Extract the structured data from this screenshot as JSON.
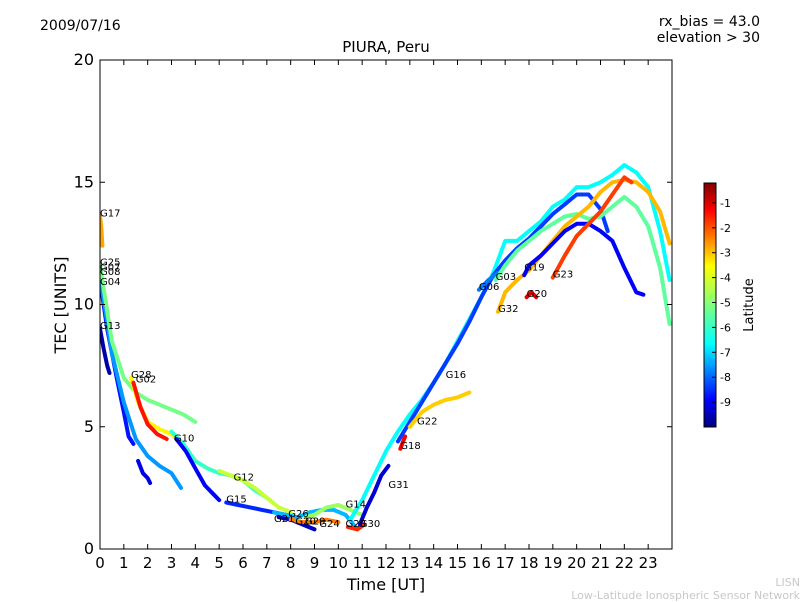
{
  "header": {
    "date": "2009/07/16",
    "rx_bias": "rx_bias = 43.0",
    "elevation": "elevation > 30"
  },
  "footer": {
    "short": "LISN",
    "long": "Low-Latitude Ionospheric Sensor Network"
  },
  "chart_data": {
    "type": "scatter",
    "title": "PIURA, Peru",
    "xlabel": "Time [UT]",
    "ylabel": "TEC [UNITS]",
    "xlim": [
      0,
      24
    ],
    "ylim": [
      0,
      20
    ],
    "xticks": [
      "0",
      "1",
      "2",
      "3",
      "4",
      "5",
      "6",
      "7",
      "8",
      "9",
      "10",
      "11",
      "12",
      "13",
      "14",
      "15",
      "16",
      "17",
      "18",
      "19",
      "20",
      "21",
      "22",
      "23"
    ],
    "yticks": [
      "0",
      "5",
      "10",
      "15",
      "20"
    ],
    "colorbar": {
      "label": "Latitude",
      "range": [
        -10,
        -0.2
      ],
      "ticks": [
        "-1",
        "-2",
        "-3",
        "-4",
        "-5",
        "-6",
        "-7",
        "-8",
        "-9"
      ],
      "colors": [
        "#00007f",
        "#0000ff",
        "#007fff",
        "#00ffff",
        "#7fff7f",
        "#ffff00",
        "#ff7f00",
        "#ff0000",
        "#7f0000"
      ]
    },
    "satellite_labels": [
      {
        "name": "G17",
        "time": 0.0,
        "tec": 13.6
      },
      {
        "name": "G25",
        "time": 0.0,
        "tec": 11.6
      },
      {
        "name": "G07",
        "time": 0.0,
        "tec": 11.4
      },
      {
        "name": "G08",
        "time": 0.0,
        "tec": 11.2
      },
      {
        "name": "G04",
        "time": 0.0,
        "tec": 10.8
      },
      {
        "name": "G13",
        "time": 0.0,
        "tec": 9.0
      },
      {
        "name": "G28",
        "time": 1.3,
        "tec": 7.0
      },
      {
        "name": "G02",
        "time": 1.5,
        "tec": 6.8
      },
      {
        "name": "G10",
        "time": 3.1,
        "tec": 4.4
      },
      {
        "name": "G12",
        "time": 5.6,
        "tec": 2.8
      },
      {
        "name": "G15",
        "time": 5.3,
        "tec": 1.9
      },
      {
        "name": "G26",
        "time": 7.9,
        "tec": 1.3
      },
      {
        "name": "G20",
        "time": 8.2,
        "tec": 1.0
      },
      {
        "name": "G29",
        "time": 8.6,
        "tec": 1.0
      },
      {
        "name": "G21",
        "time": 7.3,
        "tec": 1.1
      },
      {
        "name": "G24",
        "time": 9.2,
        "tec": 0.9
      },
      {
        "name": "G14",
        "time": 10.3,
        "tec": 1.7
      },
      {
        "name": "G23",
        "time": 10.3,
        "tec": 0.9
      },
      {
        "name": "G30",
        "time": 10.9,
        "tec": 0.9
      },
      {
        "name": "G31",
        "time": 12.1,
        "tec": 2.5
      },
      {
        "name": "G18",
        "time": 12.6,
        "tec": 4.1
      },
      {
        "name": "G22",
        "time": 13.3,
        "tec": 5.1
      },
      {
        "name": "G16",
        "time": 14.5,
        "tec": 7.0
      },
      {
        "name": "G06",
        "time": 15.9,
        "tec": 10.6
      },
      {
        "name": "G03",
        "time": 16.6,
        "tec": 11.0
      },
      {
        "name": "G19",
        "time": 17.8,
        "tec": 11.4
      },
      {
        "name": "G32",
        "time": 16.7,
        "tec": 9.7
      },
      {
        "name": "G20",
        "time": 17.9,
        "tec": 10.3
      },
      {
        "name": "G23",
        "time": 19.0,
        "tec": 11.1
      }
    ],
    "series": [
      {
        "name": "G13",
        "lat": -9.6,
        "points": [
          [
            0,
            9.0
          ],
          [
            0.15,
            8.2
          ],
          [
            0.3,
            7.5
          ],
          [
            0.4,
            7.2
          ]
        ]
      },
      {
        "name": "G04",
        "lat": -8.6,
        "points": [
          [
            0,
            11.0
          ],
          [
            0.3,
            9.0
          ],
          [
            0.7,
            7.0
          ],
          [
            1.0,
            5.6
          ],
          [
            1.2,
            4.6
          ],
          [
            1.4,
            4.3
          ]
        ]
      },
      {
        "name": "G08",
        "lat": -7.3,
        "points": [
          [
            0,
            11.2
          ],
          [
            0.5,
            8.0
          ],
          [
            1.0,
            6.0
          ],
          [
            1.5,
            4.5
          ],
          [
            2.0,
            3.8
          ],
          [
            2.5,
            3.4
          ],
          [
            3.0,
            3.1
          ],
          [
            3.4,
            2.5
          ]
        ]
      },
      {
        "name": "G07",
        "lat": -9.0,
        "points": [
          [
            1.6,
            3.6
          ],
          [
            1.8,
            3.1
          ],
          [
            2.0,
            2.9
          ],
          [
            2.1,
            2.7
          ]
        ]
      },
      {
        "name": "G25",
        "lat": -5.2,
        "points": [
          [
            0,
            11.6
          ],
          [
            0.5,
            8.5
          ],
          [
            1.0,
            7.0
          ],
          [
            1.5,
            6.4
          ],
          [
            2.0,
            6.1
          ],
          [
            2.5,
            5.9
          ],
          [
            3.0,
            5.7
          ],
          [
            3.5,
            5.5
          ],
          [
            4.0,
            5.2
          ]
        ]
      },
      {
        "name": "G28",
        "lat": -3.8,
        "points": [
          [
            1.3,
            7.0
          ],
          [
            1.6,
            6.0
          ],
          [
            2.0,
            5.2
          ],
          [
            2.5,
            4.9
          ],
          [
            3.0,
            4.7
          ],
          [
            3.2,
            4.5
          ]
        ]
      },
      {
        "name": "G02",
        "lat": -1.6,
        "points": [
          [
            1.4,
            6.8
          ],
          [
            1.7,
            5.8
          ],
          [
            2.0,
            5.1
          ],
          [
            2.4,
            4.7
          ],
          [
            2.8,
            4.5
          ]
        ]
      },
      {
        "name": "G17",
        "lat": -3.0,
        "points": [
          [
            0,
            13.6
          ],
          [
            0.05,
            13.2
          ],
          [
            0.1,
            12.4
          ]
        ]
      },
      {
        "name": "G10",
        "lat": -5.8,
        "points": [
          [
            3.0,
            4.8
          ],
          [
            3.5,
            4.3
          ],
          [
            4.0,
            3.6
          ],
          [
            4.5,
            3.3
          ],
          [
            5.0,
            3.1
          ],
          [
            5.5,
            3.0
          ],
          [
            6.0,
            2.8
          ],
          [
            6.5,
            2.4
          ],
          [
            7.0,
            2.1
          ]
        ]
      },
      {
        "name": "G10b",
        "lat": -8.8,
        "points": [
          [
            3.2,
            4.5
          ],
          [
            3.6,
            4.0
          ],
          [
            4.0,
            3.3
          ],
          [
            4.4,
            2.6
          ],
          [
            4.8,
            2.2
          ],
          [
            5.0,
            2.0
          ]
        ]
      },
      {
        "name": "G12",
        "lat": -4.4,
        "points": [
          [
            5.0,
            3.2
          ],
          [
            5.5,
            3.0
          ],
          [
            6.0,
            2.8
          ],
          [
            6.5,
            2.5
          ],
          [
            7.0,
            2.1
          ],
          [
            7.5,
            1.7
          ],
          [
            8.0,
            1.5
          ]
        ]
      },
      {
        "name": "G15",
        "lat": -8.4,
        "points": [
          [
            5.3,
            1.9
          ],
          [
            5.8,
            1.8
          ],
          [
            6.3,
            1.7
          ],
          [
            6.8,
            1.6
          ],
          [
            7.3,
            1.5
          ],
          [
            7.8,
            1.4
          ]
        ]
      },
      {
        "name": "G26",
        "lat": -9.4,
        "points": [
          [
            7.5,
            1.3
          ],
          [
            8.0,
            1.2
          ],
          [
            8.5,
            1.0
          ],
          [
            9.0,
            0.8
          ]
        ]
      },
      {
        "name": "G21",
        "lat": -7.0,
        "points": [
          [
            7.3,
            1.5
          ],
          [
            7.8,
            1.4
          ],
          [
            8.3,
            1.3
          ],
          [
            8.8,
            1.5
          ],
          [
            9.3,
            1.6
          ],
          [
            9.8,
            1.6
          ],
          [
            10.3,
            1.4
          ],
          [
            10.8,
            0.8
          ]
        ]
      },
      {
        "name": "G24",
        "lat": -2.6,
        "points": [
          [
            8.0,
            1.2
          ],
          [
            8.5,
            1.1
          ],
          [
            9.0,
            1.1
          ],
          [
            9.5,
            1.2
          ],
          [
            10.0,
            1.1
          ]
        ]
      },
      {
        "name": "G29",
        "lat": -4.8,
        "points": [
          [
            8.6,
            1.3
          ],
          [
            9.0,
            1.4
          ],
          [
            9.5,
            1.7
          ],
          [
            10.0,
            1.8
          ],
          [
            10.5,
            1.6
          ],
          [
            11.0,
            1.4
          ]
        ]
      },
      {
        "name": "G30",
        "lat": -1.8,
        "points": [
          [
            10.4,
            0.9
          ],
          [
            10.8,
            0.8
          ],
          [
            11.1,
            1.0
          ]
        ]
      },
      {
        "name": "G31",
        "lat": -9.2,
        "points": [
          [
            10.9,
            1.0
          ],
          [
            11.2,
            1.7
          ],
          [
            11.5,
            2.3
          ],
          [
            11.8,
            3.0
          ],
          [
            12.1,
            3.4
          ]
        ]
      },
      {
        "name": "G14",
        "lat": -6.3,
        "points": [
          [
            10.5,
            1.2
          ],
          [
            11.0,
            2.0
          ],
          [
            11.5,
            3.0
          ],
          [
            12.0,
            4.0
          ],
          [
            12.5,
            4.8
          ],
          [
            13.0,
            5.5
          ],
          [
            13.5,
            6.1
          ],
          [
            14.0,
            6.8
          ],
          [
            14.5,
            7.6
          ],
          [
            15.0,
            8.5
          ],
          [
            15.5,
            9.4
          ],
          [
            16.0,
            10.3
          ],
          [
            16.5,
            11.3
          ],
          [
            17.0,
            12.6
          ],
          [
            17.5,
            12.6
          ],
          [
            18.0,
            13.0
          ],
          [
            18.5,
            13.4
          ],
          [
            19.0,
            14.0
          ],
          [
            19.5,
            14.3
          ],
          [
            20.0,
            14.8
          ],
          [
            20.5,
            14.8
          ],
          [
            21.0,
            15.0
          ],
          [
            21.5,
            15.3
          ],
          [
            22.0,
            15.7
          ],
          [
            22.5,
            15.4
          ],
          [
            23.0,
            14.8
          ],
          [
            23.5,
            13.0
          ],
          [
            23.9,
            11.0
          ]
        ]
      },
      {
        "name": "G16",
        "lat": -8.2,
        "points": [
          [
            12.5,
            4.4
          ],
          [
            13.0,
            5.2
          ],
          [
            13.5,
            6.0
          ],
          [
            14.0,
            6.8
          ],
          [
            14.5,
            7.6
          ],
          [
            15.0,
            8.4
          ],
          [
            15.5,
            9.3
          ],
          [
            16.0,
            10.3
          ],
          [
            16.5,
            11.2
          ],
          [
            17.0,
            11.8
          ],
          [
            17.5,
            12.3
          ],
          [
            18.0,
            12.7
          ],
          [
            18.5,
            13.2
          ],
          [
            19.0,
            13.7
          ],
          [
            19.5,
            14.1
          ],
          [
            20.0,
            14.5
          ],
          [
            20.5,
            14.5
          ],
          [
            21.0,
            13.9
          ],
          [
            21.3,
            13.0
          ]
        ]
      },
      {
        "name": "G22",
        "lat": -3.4,
        "points": [
          [
            13.0,
            5.0
          ],
          [
            13.5,
            5.6
          ],
          [
            14.0,
            5.9
          ],
          [
            14.5,
            6.1
          ],
          [
            15.0,
            6.2
          ],
          [
            15.5,
            6.4
          ]
        ]
      },
      {
        "name": "G18",
        "lat": -1.4,
        "points": [
          [
            12.6,
            4.1
          ],
          [
            12.8,
            4.6
          ]
        ]
      },
      {
        "name": "G06",
        "lat": -7.6,
        "points": [
          [
            15.9,
            10.6
          ],
          [
            16.3,
            11.0
          ],
          [
            16.7,
            11.3
          ]
        ]
      },
      {
        "name": "G03",
        "lat": -5.4,
        "points": [
          [
            16.6,
            11.0
          ],
          [
            17.0,
            11.6
          ],
          [
            17.5,
            12.2
          ],
          [
            18.0,
            12.6
          ],
          [
            18.5,
            13.0
          ],
          [
            19.0,
            13.3
          ],
          [
            19.5,
            13.6
          ],
          [
            20.0,
            13.7
          ],
          [
            20.5,
            13.5
          ],
          [
            21.0,
            13.6
          ],
          [
            21.5,
            14.0
          ],
          [
            22.0,
            14.4
          ],
          [
            22.5,
            14.0
          ],
          [
            23.0,
            13.2
          ],
          [
            23.5,
            11.5
          ],
          [
            23.9,
            9.2
          ]
        ]
      },
      {
        "name": "G32",
        "lat": -3.2,
        "points": [
          [
            16.7,
            9.7
          ],
          [
            17.0,
            10.5
          ],
          [
            17.5,
            11.0
          ],
          [
            18.0,
            11.4
          ],
          [
            18.5,
            12.0
          ],
          [
            19.0,
            12.6
          ],
          [
            19.5,
            13.2
          ],
          [
            20.0,
            13.6
          ],
          [
            20.5,
            14.0
          ],
          [
            21.0,
            14.6
          ],
          [
            21.5,
            15.0
          ],
          [
            22.0,
            15.1
          ],
          [
            22.5,
            15.0
          ],
          [
            23.0,
            14.6
          ],
          [
            23.5,
            13.8
          ],
          [
            23.9,
            12.5
          ]
        ]
      },
      {
        "name": "G20",
        "lat": -1.2,
        "points": [
          [
            17.9,
            10.3
          ],
          [
            18.1,
            10.5
          ],
          [
            18.3,
            10.3
          ]
        ]
      },
      {
        "name": "G19",
        "lat": -8.8,
        "points": [
          [
            17.8,
            11.2
          ],
          [
            18.0,
            11.6
          ],
          [
            18.5,
            12.0
          ],
          [
            19.0,
            12.5
          ],
          [
            19.5,
            13.0
          ],
          [
            20.0,
            13.3
          ],
          [
            20.5,
            13.3
          ],
          [
            21.0,
            13.0
          ],
          [
            21.5,
            12.6
          ],
          [
            22.0,
            11.5
          ],
          [
            22.5,
            10.5
          ],
          [
            22.8,
            10.4
          ]
        ]
      },
      {
        "name": "G23",
        "lat": -2.0,
        "points": [
          [
            19.0,
            11.1
          ],
          [
            19.5,
            12.0
          ],
          [
            20.0,
            12.8
          ],
          [
            20.5,
            13.3
          ],
          [
            21.0,
            13.8
          ],
          [
            21.5,
            14.5
          ],
          [
            22.0,
            15.2
          ],
          [
            22.3,
            15.0
          ]
        ]
      }
    ]
  }
}
